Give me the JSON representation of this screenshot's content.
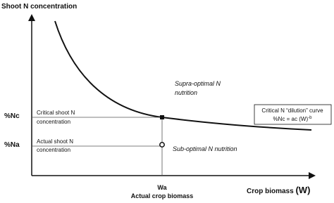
{
  "axes": {
    "y_label": "Shoot N concentration",
    "x_label": "Crop biomass",
    "x_symbol": "(W)"
  },
  "levels": {
    "critical": "%Nc",
    "actual": "%Na"
  },
  "labels": {
    "critical": [
      "Critical shoot N",
      "concentration"
    ],
    "actual": [
      "Actual  shoot N",
      "concentration"
    ],
    "supra": [
      "Supra-optimal N",
      "nutrition"
    ],
    "sub": "Sub-optimal N nutrition",
    "wa": "Wa",
    "wa_caption": "Actual crop biomass"
  },
  "curve_box": {
    "title": "Critical N “dilution” curve",
    "formula": "%Nc = ac (W)",
    "exponent": "-b"
  }
}
